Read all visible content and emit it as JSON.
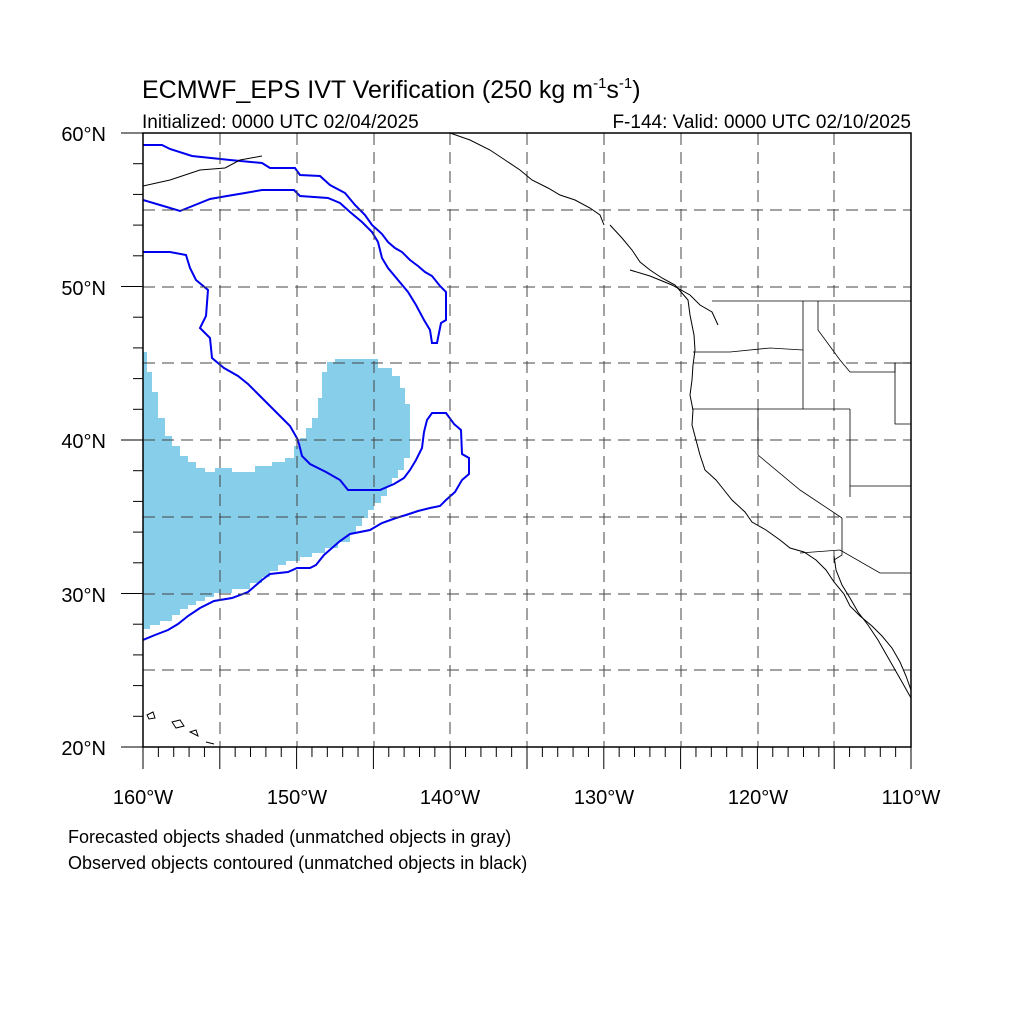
{
  "title": {
    "main": "ECMWF_EPS IVT Verification (250 kg m",
    "sup1": "-1",
    "mid": "s",
    "sup2": "-1",
    "end": ")"
  },
  "subtitle_left": "Initialized: 0000 UTC 02/04/2025",
  "subtitle_right": "F-144: Valid: 0000 UTC 02/10/2025",
  "lat_labels": [
    "60°N",
    "50°N",
    "40°N",
    "30°N",
    "20°N"
  ],
  "lon_labels": [
    "160°W",
    "150°W",
    "140°W",
    "130°W",
    "120°W",
    "110°W"
  ],
  "legend_notes": [
    "Forecasted objects shaded (unmatched objects in gray)",
    "Observed objects contoured (unmatched objects in black)"
  ],
  "map_extent": {
    "lon": [
      -160,
      -110
    ],
    "lat": [
      20,
      60
    ]
  },
  "colors": {
    "forecast_fill": "#87ceeb",
    "observed_contour": "#0000ee",
    "coastline": "#000000"
  }
}
